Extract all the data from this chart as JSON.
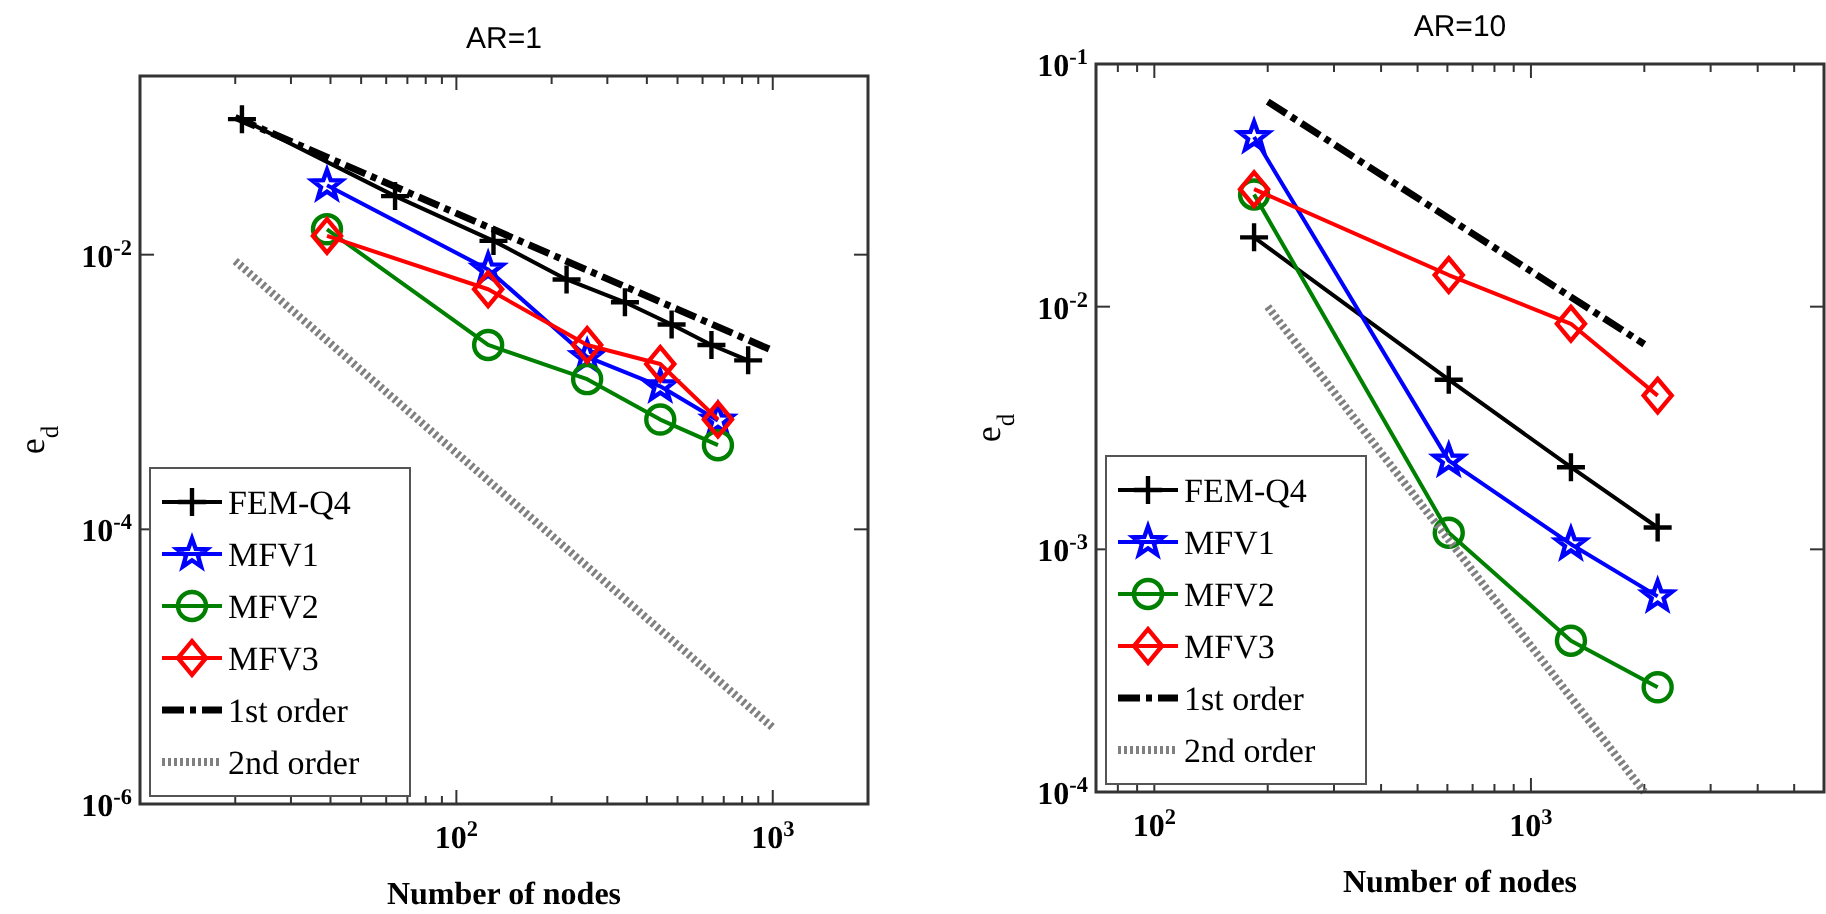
{
  "chart_data": [
    {
      "type": "line",
      "title": "AR=1",
      "xlabel": "Number of nodes",
      "ylabel": "e$_{d}$",
      "log": "xy",
      "grid": false,
      "legend": "bottom left",
      "xlim": [
        10,
        2000
      ],
      "ylim": [
        1e-06,
        0.2
      ],
      "xticks": [
        {
          "value": 20,
          "label": null
        },
        {
          "value": 30,
          "label": null
        },
        {
          "value": 40,
          "label": null
        },
        {
          "value": 50,
          "label": null
        },
        {
          "value": 60,
          "label": null
        },
        {
          "value": 70,
          "label": null
        },
        {
          "value": 80,
          "label": null
        },
        {
          "value": 90,
          "label": null
        },
        {
          "value": 100,
          "label": "10$^{2}$"
        },
        {
          "value": 200,
          "label": null
        },
        {
          "value": 300,
          "label": null
        },
        {
          "value": 400,
          "label": null
        },
        {
          "value": 500,
          "label": null
        },
        {
          "value": 600,
          "label": null
        },
        {
          "value": 700,
          "label": null
        },
        {
          "value": 800,
          "label": null
        },
        {
          "value": 900,
          "label": null
        },
        {
          "value": 1000,
          "label": "10$^{3}$"
        },
        {
          "value": 2000,
          "label": null
        }
      ],
      "yticks": [
        {
          "value": 1e-06,
          "label": "10$^{-6}$"
        },
        {
          "value": 0.0001,
          "label": "10$^{-4}$"
        },
        {
          "value": 0.01,
          "label": "10$^{-2}$"
        }
      ],
      "series": [
        {
          "name": "FEM-Q4",
          "color": "#000000",
          "marker": "cross",
          "line_style": "solid",
          "x": [
            21,
            64,
            131,
            223,
            341,
            479,
            640,
            836
          ],
          "values": [
            0.097,
            0.0267,
            0.0126,
            0.0066,
            0.0045,
            0.0031,
            0.0022,
            0.0017
          ]
        },
        {
          "name": "MFV1",
          "color": "#0000ff",
          "marker": "star",
          "line_style": "solid",
          "x": [
            39,
            126,
            259,
            441,
            671
          ],
          "values": [
            0.032,
            0.0078,
            0.0018,
            0.0011,
            0.00062
          ]
        },
        {
          "name": "MFV2",
          "color": "#008000",
          "marker": "circle",
          "line_style": "solid",
          "x": [
            39,
            126,
            259,
            441,
            671
          ],
          "values": [
            0.0153,
            0.0022,
            0.00124,
            0.00063,
            0.00041
          ]
        },
        {
          "name": "MFV3",
          "color": "#ff0000",
          "marker": "diamond",
          "line_style": "solid",
          "x": [
            39,
            126,
            259,
            441,
            671
          ],
          "values": [
            0.0137,
            0.0056,
            0.0022,
            0.0016,
            0.00063
          ]
        },
        {
          "name": "1st order",
          "color": "#000000",
          "marker": "none",
          "line_style": "dashed",
          "x": [
            20,
            1000
          ],
          "values": [
            0.1,
            0.002
          ]
        },
        {
          "name": "2nd order",
          "color": "#808080",
          "marker": "none",
          "line_style": "dotted",
          "x": [
            20,
            1000
          ],
          "values": [
            0.009,
            3.6e-06
          ]
        }
      ]
    },
    {
      "type": "line",
      "title": "AR=10",
      "xlabel": "Number of nodes",
      "ylabel": "e$_{d}$",
      "log": "xy",
      "grid": false,
      "legend": "bottom left",
      "xlim": [
        70,
        6000
      ],
      "ylim": [
        0.0001,
        0.1
      ],
      "xticks": [
        {
          "value": 70,
          "label": null
        },
        {
          "value": 80,
          "label": null
        },
        {
          "value": 90,
          "label": null
        },
        {
          "value": 100,
          "label": "10$^{2}$"
        },
        {
          "value": 200,
          "label": null
        },
        {
          "value": 300,
          "label": null
        },
        {
          "value": 400,
          "label": null
        },
        {
          "value": 500,
          "label": null
        },
        {
          "value": 600,
          "label": null
        },
        {
          "value": 700,
          "label": null
        },
        {
          "value": 800,
          "label": null
        },
        {
          "value": 900,
          "label": null
        },
        {
          "value": 1000,
          "label": "10$^{3}$"
        },
        {
          "value": 2000,
          "label": null
        },
        {
          "value": 3000,
          "label": null
        },
        {
          "value": 4000,
          "label": null
        },
        {
          "value": 5000,
          "label": null
        },
        {
          "value": 6000,
          "label": null
        }
      ],
      "yticks": [
        {
          "value": 0.0001,
          "label": "10$^{-4}$"
        },
        {
          "value": 0.001,
          "label": "10$^{-3}$"
        },
        {
          "value": 0.01,
          "label": "10$^{-2}$"
        },
        {
          "value": 0.1,
          "label": "10$^{-1}$"
        }
      ],
      "series": [
        {
          "name": "FEM-Q4",
          "color": "#000000",
          "marker": "cross",
          "line_style": "solid",
          "x": [
            184,
            605,
            1277,
            2170
          ],
          "values": [
            0.0193,
            0.005,
            0.00218,
            0.00123
          ]
        },
        {
          "name": "MFV1",
          "color": "#0000ff",
          "marker": "star",
          "line_style": "solid",
          "x": [
            184,
            605,
            1277,
            2170
          ],
          "values": [
            0.05,
            0.00232,
            0.00105,
            0.00064
          ]
        },
        {
          "name": "MFV2",
          "color": "#008000",
          "marker": "circle",
          "line_style": "solid",
          "x": [
            184,
            605,
            1277,
            2170
          ],
          "values": [
            0.029,
            0.00117,
            0.00042,
            0.00027
          ]
        },
        {
          "name": "MFV3",
          "color": "#ff0000",
          "marker": "diamond",
          "line_style": "solid",
          "x": [
            184,
            605,
            1277,
            2170
          ],
          "values": [
            0.0305,
            0.0135,
            0.0085,
            0.0043
          ]
        },
        {
          "name": "1st order",
          "color": "#000000",
          "marker": "none",
          "line_style": "dashed",
          "x": [
            200,
            2000
          ],
          "values": [
            0.07,
            0.007
          ]
        },
        {
          "name": "2nd order",
          "color": "#808080",
          "marker": "none",
          "line_style": "dotted",
          "x": [
            200,
            2000
          ],
          "values": [
            0.01,
            0.0001
          ]
        }
      ]
    }
  ]
}
